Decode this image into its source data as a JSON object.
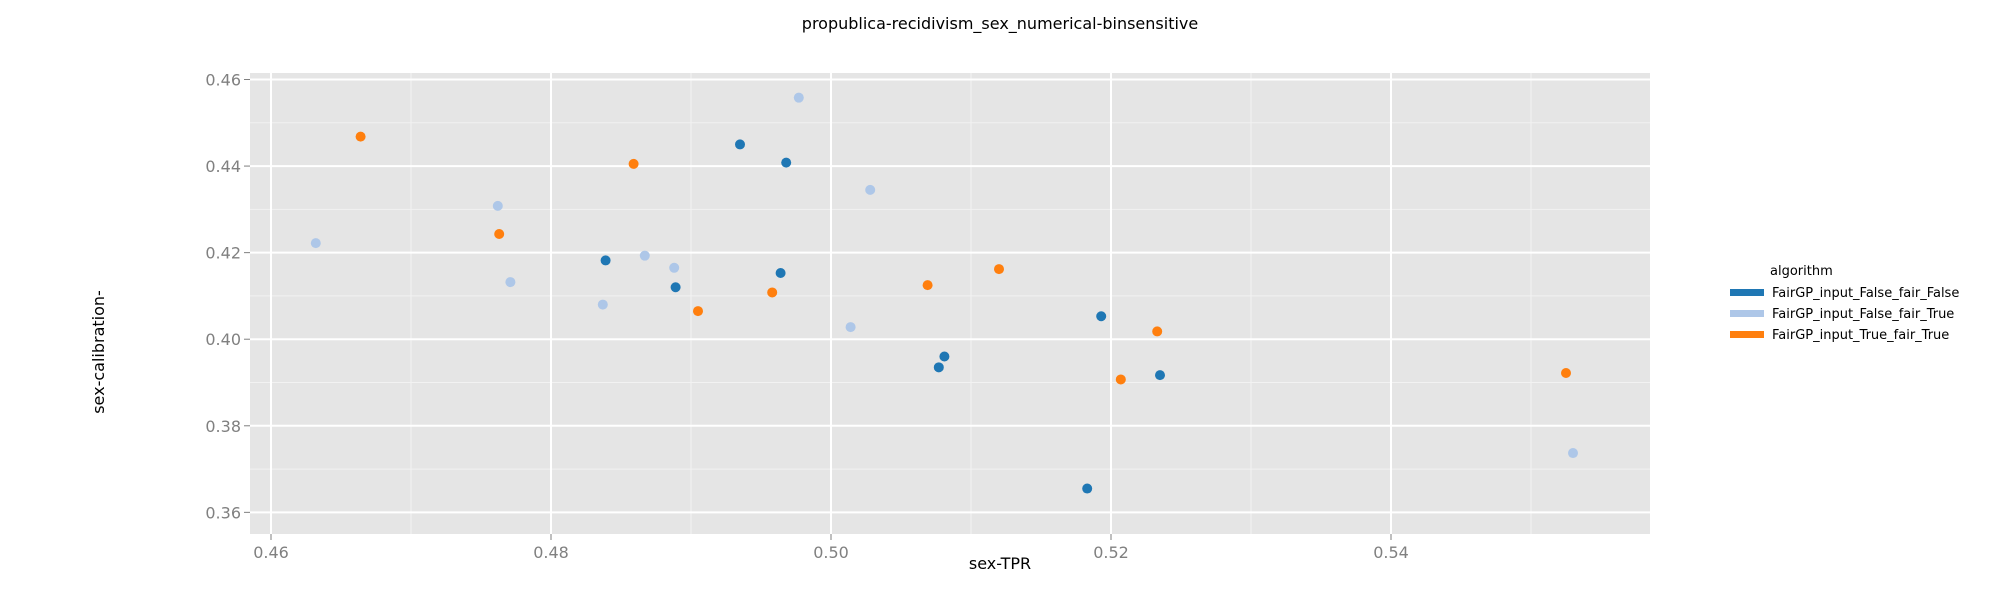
{
  "chart_data": {
    "type": "scatter",
    "title": "propublica-recidivism_sex_numerical-binsensitive",
    "xlabel": "sex-TPR",
    "ylabel": "sex-calibration-",
    "xlim": [
      0.4585,
      0.5585
    ],
    "ylim": [
      0.355,
      0.4615
    ],
    "xticks": [
      "0.46",
      "0.48",
      "0.50",
      "0.52",
      "0.54"
    ],
    "xtick_values": [
      0.46,
      0.48,
      0.5,
      0.52,
      0.54
    ],
    "yticks": [
      "0.36",
      "0.38",
      "0.40",
      "0.42",
      "0.44",
      "0.46"
    ],
    "ytick_values": [
      0.36,
      0.38,
      0.4,
      0.42,
      0.44,
      0.46
    ],
    "grid": true,
    "background": "#e5e5e5",
    "legend_placement": "right",
    "legend_title": "algorithm",
    "series": [
      {
        "name": "FairGP_input_False_fair_False",
        "color": "#1f77b4",
        "points": [
          [
            0.4935,
            0.445
          ],
          [
            0.4968,
            0.4408
          ],
          [
            0.4839,
            0.4182
          ],
          [
            0.4889,
            0.412
          ],
          [
            0.4964,
            0.4153
          ],
          [
            0.5193,
            0.4053
          ],
          [
            0.5081,
            0.396
          ],
          [
            0.5077,
            0.3935
          ],
          [
            0.5235,
            0.3917
          ],
          [
            0.5183,
            0.3655
          ]
        ]
      },
      {
        "name": "FairGP_input_False_fair_True",
        "color": "#aec7e8",
        "points": [
          [
            0.4977,
            0.4558
          ],
          [
            0.5028,
            0.4345
          ],
          [
            0.4762,
            0.4308
          ],
          [
            0.4632,
            0.4222
          ],
          [
            0.4867,
            0.4193
          ],
          [
            0.4888,
            0.4165
          ],
          [
            0.4771,
            0.4132
          ],
          [
            0.4837,
            0.408
          ],
          [
            0.5014,
            0.4028
          ],
          [
            0.553,
            0.3737
          ]
        ]
      },
      {
        "name": "FairGP_input_True_fair_True",
        "color": "#ff7f0e",
        "points": [
          [
            0.4664,
            0.4468
          ],
          [
            0.4859,
            0.4405
          ],
          [
            0.4763,
            0.4243
          ],
          [
            0.512,
            0.4162
          ],
          [
            0.5069,
            0.4125
          ],
          [
            0.4958,
            0.4108
          ],
          [
            0.4905,
            0.4065
          ],
          [
            0.5233,
            0.4018
          ],
          [
            0.5207,
            0.3907
          ],
          [
            0.5525,
            0.3922
          ]
        ]
      }
    ]
  }
}
